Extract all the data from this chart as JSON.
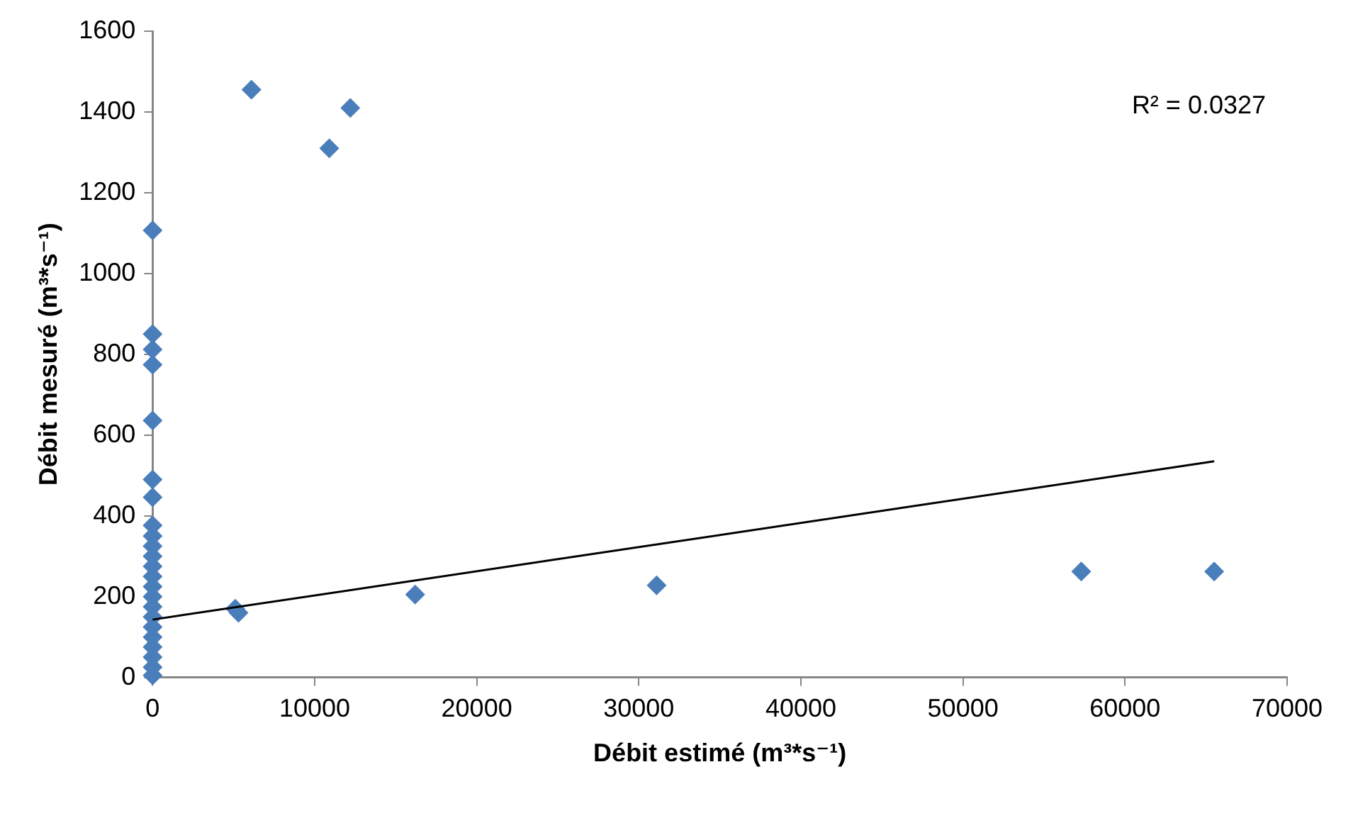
{
  "chart_data": {
    "type": "scatter",
    "xlabel": "Débit estimé (m³*s⁻¹)",
    "ylabel": "Débit mesuré (m³*s⁻¹)",
    "xlim": [
      0,
      70000
    ],
    "xticks": [
      0,
      10000,
      20000,
      30000,
      40000,
      50000,
      60000,
      70000
    ],
    "ylim": [
      0,
      1600
    ],
    "yticks": [
      0,
      200,
      400,
      600,
      800,
      1000,
      1200,
      1400,
      1600
    ],
    "grid": false,
    "legend": false,
    "marker": "diamond",
    "annotations": [
      "R² = 0.0327"
    ],
    "series": [
      {
        "color": "#4a7ebb",
        "x": [
          6100,
          12200,
          10900,
          5100,
          5300,
          16200,
          31100,
          57300,
          65500,
          0,
          0,
          0,
          0,
          0,
          0,
          0,
          0,
          0,
          0,
          0,
          0,
          0,
          0,
          0,
          0,
          0,
          0,
          0,
          0,
          0,
          0,
          0
        ],
        "values": [
          1455,
          1410,
          1310,
          170,
          160,
          205,
          228,
          262,
          262,
          1107,
          850,
          812,
          774,
          636,
          490,
          446,
          376,
          350,
          325,
          300,
          275,
          250,
          225,
          200,
          175,
          150,
          125,
          100,
          75,
          50,
          25,
          5
        ]
      },
      {
        "type": "line",
        "color": "#000000",
        "marker": "none",
        "x": [
          0,
          65500
        ],
        "values": [
          143,
          535
        ]
      }
    ]
  }
}
